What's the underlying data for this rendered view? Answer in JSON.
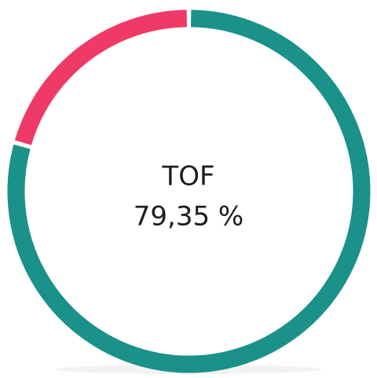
{
  "chart_data": {
    "type": "donut",
    "categories": [
      "TOF",
      null
    ],
    "values": [
      79.35,
      20.65
    ],
    "value_labels": [
      "79,35 %",
      null
    ],
    "colors": [
      "#1a9189",
      "#ef3a67"
    ]
  }
}
